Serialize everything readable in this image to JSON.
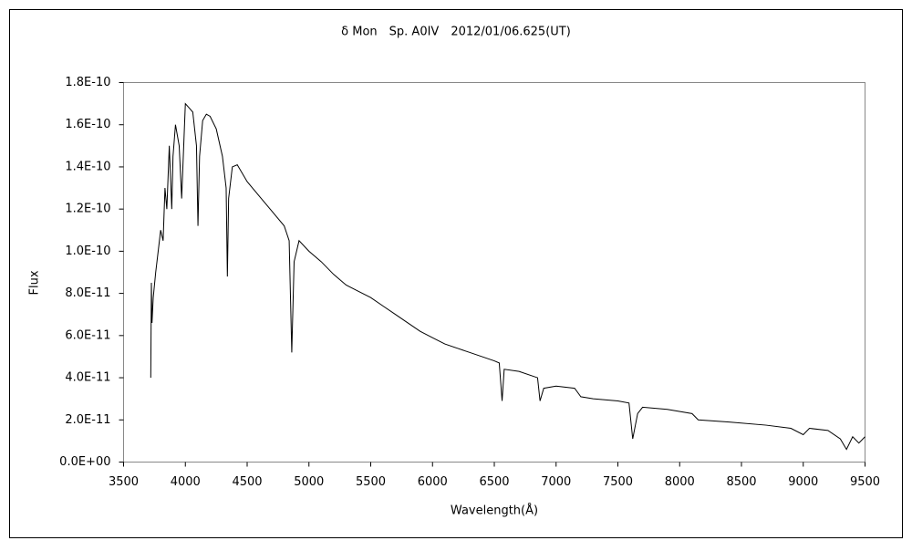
{
  "chart_data": {
    "type": "line",
    "title": "δ Mon　Sp. A0IV　2012/01/06.625(UT)",
    "x_label": "Wavelength(Å)",
    "y_label": "Flux",
    "grid": false,
    "xlim": [
      3500,
      9500
    ],
    "xticks": [
      3500,
      4000,
      4500,
      5000,
      5500,
      6000,
      6500,
      7000,
      7500,
      8000,
      8500,
      9000,
      9500
    ],
    "ylim": [
      0,
      1.8e-10
    ],
    "yticks": [
      {
        "value": 0,
        "label": "0.0E+00"
      },
      {
        "value": 2e-11,
        "label": "2.0E-11"
      },
      {
        "value": 4e-11,
        "label": "4.0E-11"
      },
      {
        "value": 6e-11,
        "label": "6.0E-11"
      },
      {
        "value": 8e-11,
        "label": "8.0E-11"
      },
      {
        "value": 1e-10,
        "label": "1.0E-10"
      },
      {
        "value": 1.2e-10,
        "label": "1.2E-10"
      },
      {
        "value": 1.4e-10,
        "label": "1.4E-10"
      },
      {
        "value": 1.6e-10,
        "label": "1.6E-10"
      },
      {
        "value": 1.8e-10,
        "label": "1.8E-10"
      }
    ],
    "series": [
      {
        "color": "#000000",
        "x": [
          3720,
          3725,
          3730,
          3740,
          3760,
          3780,
          3800,
          3820,
          3835,
          3850,
          3870,
          3890,
          3900,
          3920,
          3950,
          3970,
          3990,
          4000,
          4030,
          4060,
          4090,
          4102,
          4115,
          4140,
          4170,
          4200,
          4250,
          4300,
          4330,
          4340,
          4350,
          4380,
          4420,
          4500,
          4600,
          4700,
          4800,
          4840,
          4861,
          4880,
          4920,
          5000,
          5100,
          5200,
          5300,
          5400,
          5500,
          5600,
          5700,
          5800,
          5900,
          6000,
          6100,
          6200,
          6300,
          6400,
          6500,
          6540,
          6563,
          6580,
          6700,
          6850,
          6870,
          6900,
          7000,
          7150,
          7200,
          7300,
          7500,
          7590,
          7620,
          7660,
          7700,
          7900,
          8100,
          8150,
          8400,
          8700,
          8900,
          9000,
          9050,
          9200,
          9300,
          9350,
          9400,
          9450,
          9500
        ],
        "values": [
          4e-11,
          8.5e-11,
          6.6e-11,
          7.8e-11,
          9e-11,
          1e-10,
          1.1e-10,
          1.05e-10,
          1.3e-10,
          1.2e-10,
          1.5e-10,
          1.2e-10,
          1.45e-10,
          1.6e-10,
          1.5e-10,
          1.25e-10,
          1.55e-10,
          1.7e-10,
          1.68e-10,
          1.66e-10,
          1.5e-10,
          1.12e-10,
          1.45e-10,
          1.62e-10,
          1.65e-10,
          1.64e-10,
          1.58e-10,
          1.45e-10,
          1.3e-10,
          8.8e-11,
          1.25e-10,
          1.4e-10,
          1.41e-10,
          1.33e-10,
          1.26e-10,
          1.19e-10,
          1.12e-10,
          1.05e-10,
          5.2e-11,
          9.5e-11,
          1.05e-10,
          1e-10,
          9.5e-11,
          8.9e-11,
          8.4e-11,
          8.1e-11,
          7.8e-11,
          7.4e-11,
          7e-11,
          6.6e-11,
          6.2e-11,
          5.9e-11,
          5.6e-11,
          5.4e-11,
          5.2e-11,
          5e-11,
          4.8e-11,
          4.7e-11,
          2.9e-11,
          4.4e-11,
          4.3e-11,
          4e-11,
          2.9e-11,
          3.5e-11,
          3.6e-11,
          3.5e-11,
          3.1e-11,
          3e-11,
          2.9e-11,
          2.8e-11,
          1.1e-11,
          2.3e-11,
          2.6e-11,
          2.5e-11,
          2.3e-11,
          2e-11,
          1.9e-11,
          1.75e-11,
          1.6e-11,
          1.3e-11,
          1.6e-11,
          1.5e-11,
          1.1e-11,
          6e-12,
          1.2e-11,
          9e-12,
          1.2e-11
        ]
      }
    ]
  }
}
